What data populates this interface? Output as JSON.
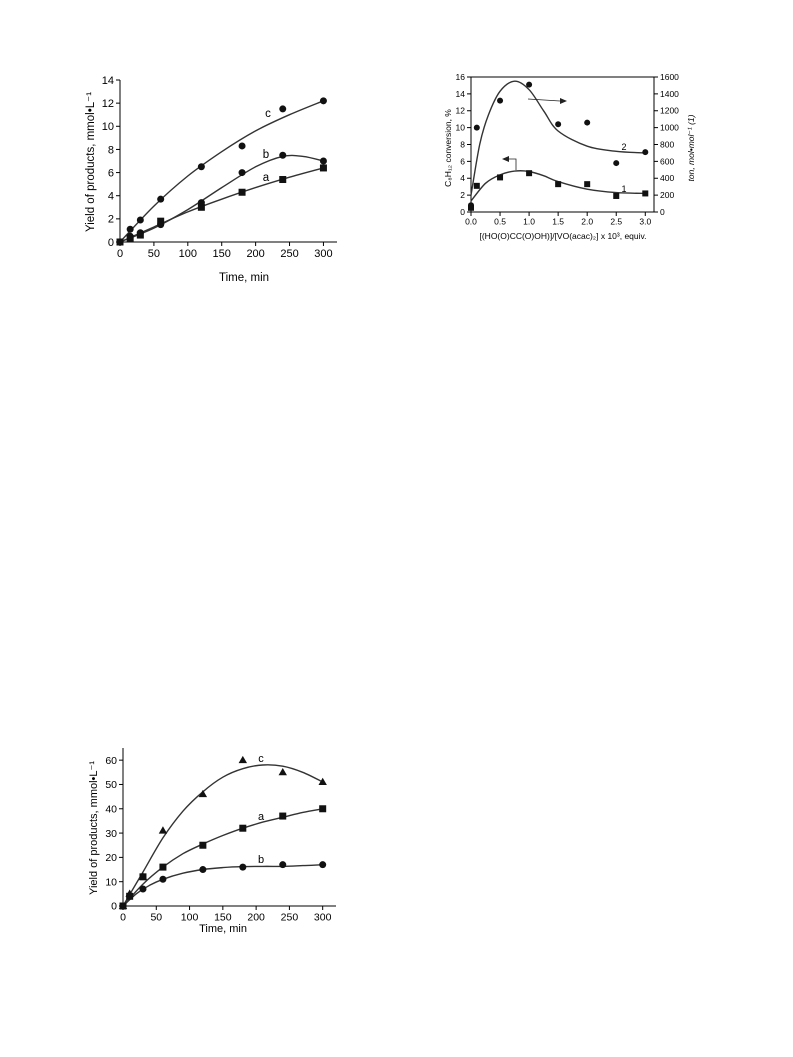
{
  "chart_data": [
    {
      "type": "scatter",
      "xlabel": "Time, min",
      "ylabel": "Yield of products, mmol•L⁻¹",
      "xlim": [
        0,
        320
      ],
      "ylim": [
        0,
        14
      ],
      "xticks": [
        "0",
        "50",
        "100",
        "150",
        "200",
        "250",
        "300"
      ],
      "yticks": [
        "0",
        "2",
        "4",
        "6",
        "8",
        "10",
        "12",
        "14"
      ],
      "series": [
        {
          "name": "a",
          "marker": "square",
          "x": [
            0,
            15,
            30,
            60,
            120,
            180,
            240,
            300
          ],
          "y": [
            0,
            0.3,
            0.6,
            1.8,
            3.0,
            4.3,
            5.4,
            6.4
          ]
        },
        {
          "name": "b",
          "marker": "circle",
          "x": [
            0,
            15,
            30,
            60,
            120,
            180,
            240,
            300
          ],
          "y": [
            0,
            0.5,
            0.8,
            1.5,
            3.4,
            6.0,
            7.5,
            7.0
          ]
        },
        {
          "name": "c",
          "marker": "circle",
          "x": [
            0,
            15,
            30,
            60,
            120,
            180,
            240,
            300
          ],
          "y": [
            0,
            1.1,
            1.9,
            3.7,
            6.5,
            8.3,
            11.5,
            12.2
          ]
        }
      ],
      "fits": [
        {
          "name": "a",
          "x": [
            0,
            50,
            100,
            150,
            200,
            250,
            300
          ],
          "y": [
            0,
            1.3,
            2.6,
            3.7,
            4.7,
            5.6,
            6.4
          ]
        },
        {
          "name": "b",
          "x": [
            0,
            50,
            100,
            150,
            200,
            240,
            270,
            300
          ],
          "y": [
            0,
            1.2,
            2.8,
            4.7,
            6.5,
            7.4,
            7.4,
            7.0
          ]
        },
        {
          "name": "c",
          "x": [
            0,
            50,
            100,
            150,
            200,
            250,
            300
          ],
          "y": [
            0,
            3.1,
            5.7,
            7.8,
            9.6,
            11.0,
            12.2
          ]
        }
      ]
    },
    {
      "type": "scatter",
      "xlabel": "[(HO(O)CC(O)OH)]/[VO(acac)₂] x 10³, equiv.",
      "ylabel": "C₈H₁₂ conversion, %",
      "ylabel_right": "ton, mol•mol⁻¹ (1)",
      "xlim": [
        0,
        3.15
      ],
      "ylim": [
        0,
        16
      ],
      "ylim_right": [
        0,
        1600
      ],
      "xticks": [
        "0.0",
        "0.5",
        "1.0",
        "1.5",
        "2.0",
        "2.5",
        "3.0"
      ],
      "yticks": [
        "0",
        "2",
        "4",
        "6",
        "8",
        "10",
        "12",
        "14",
        "16"
      ],
      "yticks_right": [
        "0",
        "200",
        "400",
        "600",
        "800",
        "1000",
        "1200",
        "1400",
        "1600"
      ],
      "series": [
        {
          "name": "1",
          "marker": "square",
          "axis": "left",
          "x": [
            0,
            0.1,
            0.5,
            1.0,
            1.5,
            2.0,
            2.5,
            3.0
          ],
          "y": [
            0.5,
            3.1,
            4.1,
            4.6,
            3.3,
            3.3,
            1.9,
            2.2
          ]
        },
        {
          "name": "2",
          "marker": "circle",
          "axis": "right",
          "x": [
            0,
            0.1,
            0.5,
            1.0,
            1.5,
            2.0,
            2.5,
            3.0
          ],
          "y": [
            80,
            1000,
            1320,
            1510,
            1040,
            1060,
            580,
            710
          ]
        }
      ],
      "fits": [
        {
          "name": "1",
          "axis": "left",
          "x": [
            0,
            0.25,
            0.5,
            0.75,
            1.0,
            1.25,
            1.5,
            2.0,
            2.5,
            3.0
          ],
          "y": [
            1.3,
            3.4,
            4.4,
            4.85,
            4.8,
            4.3,
            3.6,
            2.7,
            2.3,
            2.2
          ]
        },
        {
          "name": "2",
          "axis": "right",
          "x": [
            0,
            0.15,
            0.3,
            0.5,
            0.75,
            1.0,
            1.25,
            1.5,
            2.0,
            2.5,
            3.0
          ],
          "y": [
            200,
            800,
            1150,
            1430,
            1550,
            1450,
            1200,
            960,
            780,
            720,
            700
          ]
        }
      ]
    },
    {
      "type": "scatter",
      "xlabel": "Time, min",
      "ylabel": "Yield of products, mmol•L⁻¹",
      "xlim": [
        0,
        320
      ],
      "ylim": [
        0,
        65
      ],
      "xticks": [
        "0",
        "50",
        "100",
        "150",
        "200",
        "250",
        "300"
      ],
      "yticks": [
        "0",
        "10",
        "20",
        "30",
        "40",
        "50",
        "60"
      ],
      "series": [
        {
          "name": "a",
          "marker": "square",
          "x": [
            0,
            10,
            30,
            60,
            120,
            180,
            240,
            300
          ],
          "y": [
            0,
            4,
            12,
            16,
            25,
            32,
            37,
            40
          ]
        },
        {
          "name": "b",
          "marker": "circle",
          "x": [
            0,
            10,
            30,
            60,
            120,
            180,
            240,
            300
          ],
          "y": [
            0,
            4,
            7,
            11,
            15,
            16,
            17,
            17
          ]
        },
        {
          "name": "c",
          "marker": "triangle",
          "x": [
            0,
            10,
            30,
            60,
            120,
            180,
            240,
            300
          ],
          "y": [
            0,
            5,
            12,
            31,
            46,
            60,
            55,
            51
          ]
        }
      ],
      "fits": [
        {
          "name": "a",
          "x": [
            0,
            30,
            60,
            90,
            120,
            150,
            180,
            210,
            240,
            270,
            300
          ],
          "y": [
            0,
            9,
            16,
            21.5,
            25.5,
            29,
            32,
            34.5,
            36.5,
            38.5,
            40
          ]
        },
        {
          "name": "b",
          "x": [
            0,
            20,
            40,
            60,
            90,
            120,
            150,
            180,
            210,
            240,
            270,
            300
          ],
          "y": [
            0,
            5,
            8.5,
            11,
            13.5,
            15,
            15.8,
            16.2,
            16.3,
            16.3,
            16.6,
            17
          ]
        },
        {
          "name": "c",
          "x": [
            0,
            30,
            60,
            90,
            120,
            150,
            180,
            210,
            240,
            270,
            300
          ],
          "y": [
            0,
            14,
            28,
            39,
            47,
            53,
            56.5,
            58,
            57.5,
            55,
            51
          ]
        }
      ]
    }
  ]
}
